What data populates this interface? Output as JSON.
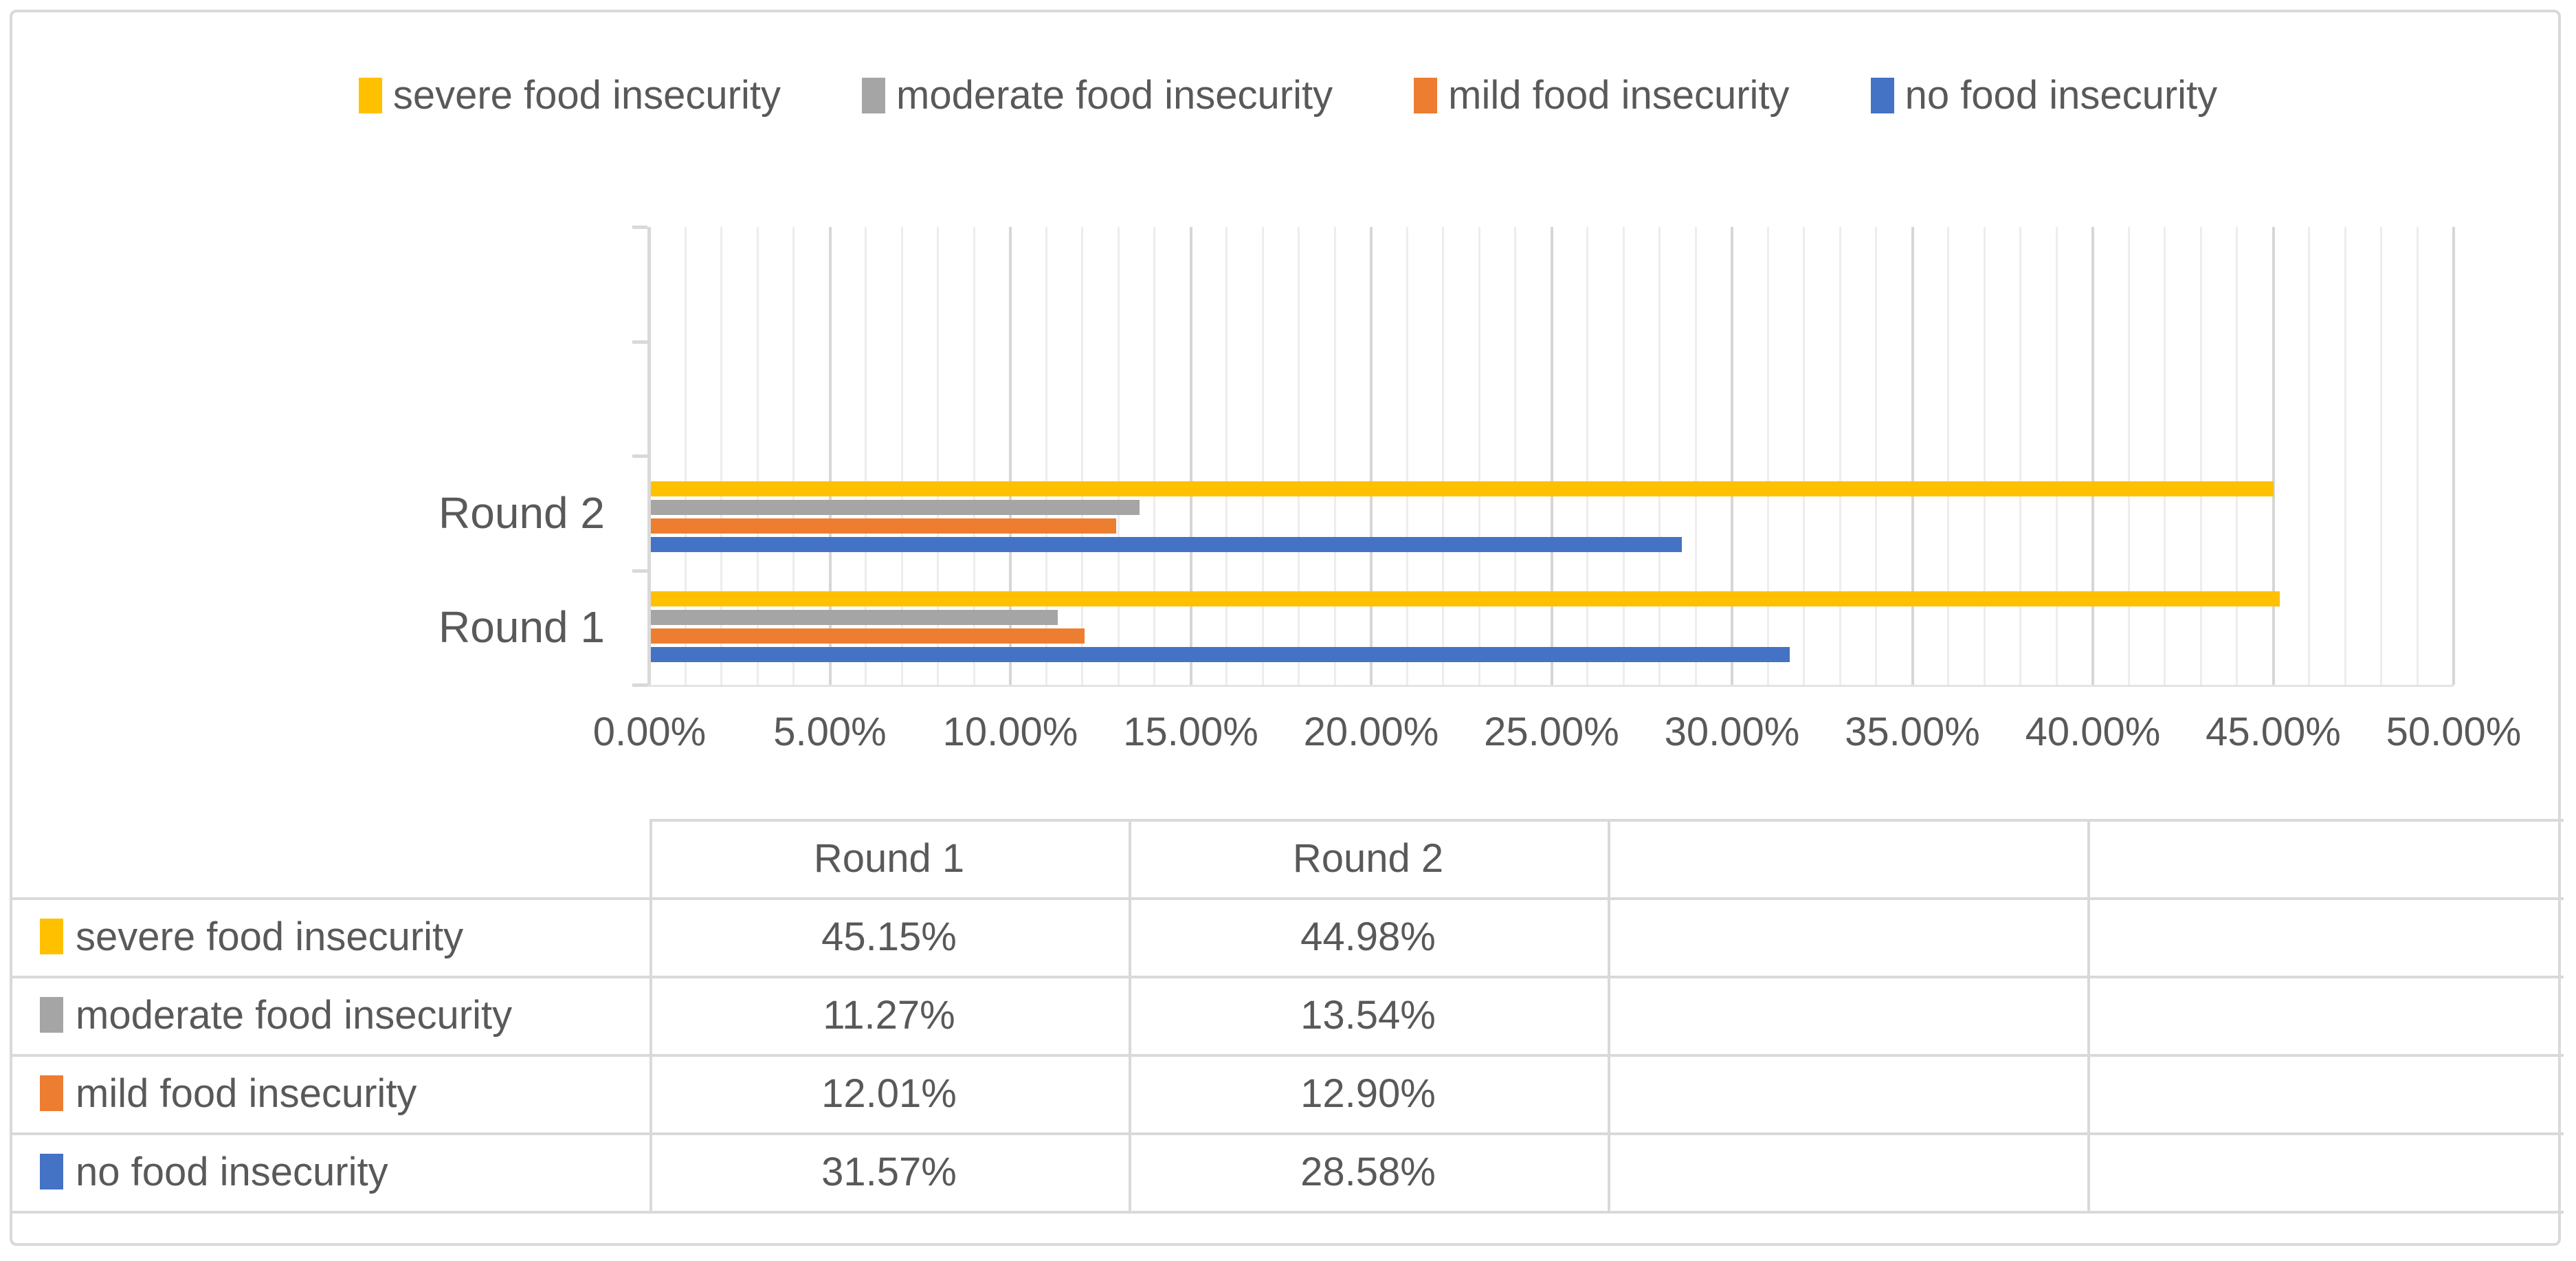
{
  "chart_data": {
    "type": "bar",
    "orientation": "horizontal",
    "title": "",
    "categories": [
      "Round 1",
      "Round 2"
    ],
    "series": [
      {
        "name": "severe food insecurity",
        "color": "#FFC000",
        "values": [
          45.15,
          44.98
        ]
      },
      {
        "name": "moderate food insecurity",
        "color": "#A5A5A5",
        "values": [
          11.27,
          13.54
        ]
      },
      {
        "name": "mild food insecurity",
        "color": "#ED7D31",
        "values": [
          12.01,
          12.9
        ]
      },
      {
        "name": "no food insecurity",
        "color": "#4472C4",
        "values": [
          31.57,
          28.58
        ]
      }
    ],
    "x_axis": {
      "min": 0,
      "max": 50,
      "major_step": 5,
      "minor_step": 1,
      "tick_labels": [
        "0.00%",
        "5.00%",
        "10.00%",
        "15.00%",
        "20.00%",
        "25.00%",
        "30.00%",
        "35.00%",
        "40.00%",
        "45.00%",
        "50.00%"
      ]
    },
    "y_axis": {
      "category_labels_top_to_bottom": [
        "Round 2",
        "Round 1"
      ],
      "empty_slots_above": 2
    },
    "legend_position": "top",
    "grid": true
  },
  "legend": {
    "items": [
      {
        "label": "severe food insecurity",
        "color": "#FFC000"
      },
      {
        "label": "moderate food insecurity",
        "color": "#A5A5A5"
      },
      {
        "label": "mild food insecurity",
        "color": "#ED7D31"
      },
      {
        "label": "no food insecurity",
        "color": "#4472C4"
      }
    ]
  },
  "data_table": {
    "column_headers": [
      "",
      "Round 1",
      "Round 2",
      "",
      ""
    ],
    "rows": [
      {
        "label": "severe food insecurity",
        "key_color": "#FFC000",
        "values": [
          "45.15%",
          "44.98%",
          "",
          ""
        ]
      },
      {
        "label": "moderate food insecurity",
        "key_color": "#A5A5A5",
        "values": [
          "11.27%",
          "13.54%",
          "",
          ""
        ]
      },
      {
        "label": "mild food insecurity",
        "key_color": "#ED7D31",
        "values": [
          "12.01%",
          "12.90%",
          "",
          ""
        ]
      },
      {
        "label": "no food insecurity",
        "key_color": "#4472C4",
        "values": [
          "31.57%",
          "28.58%",
          "",
          ""
        ]
      }
    ]
  },
  "colors": {
    "text": "#595959",
    "border": "#D9D9D9",
    "major_gridline": "#D6D6D6",
    "minor_gridline": "#EDEDED",
    "background": "#FFFFFF"
  }
}
